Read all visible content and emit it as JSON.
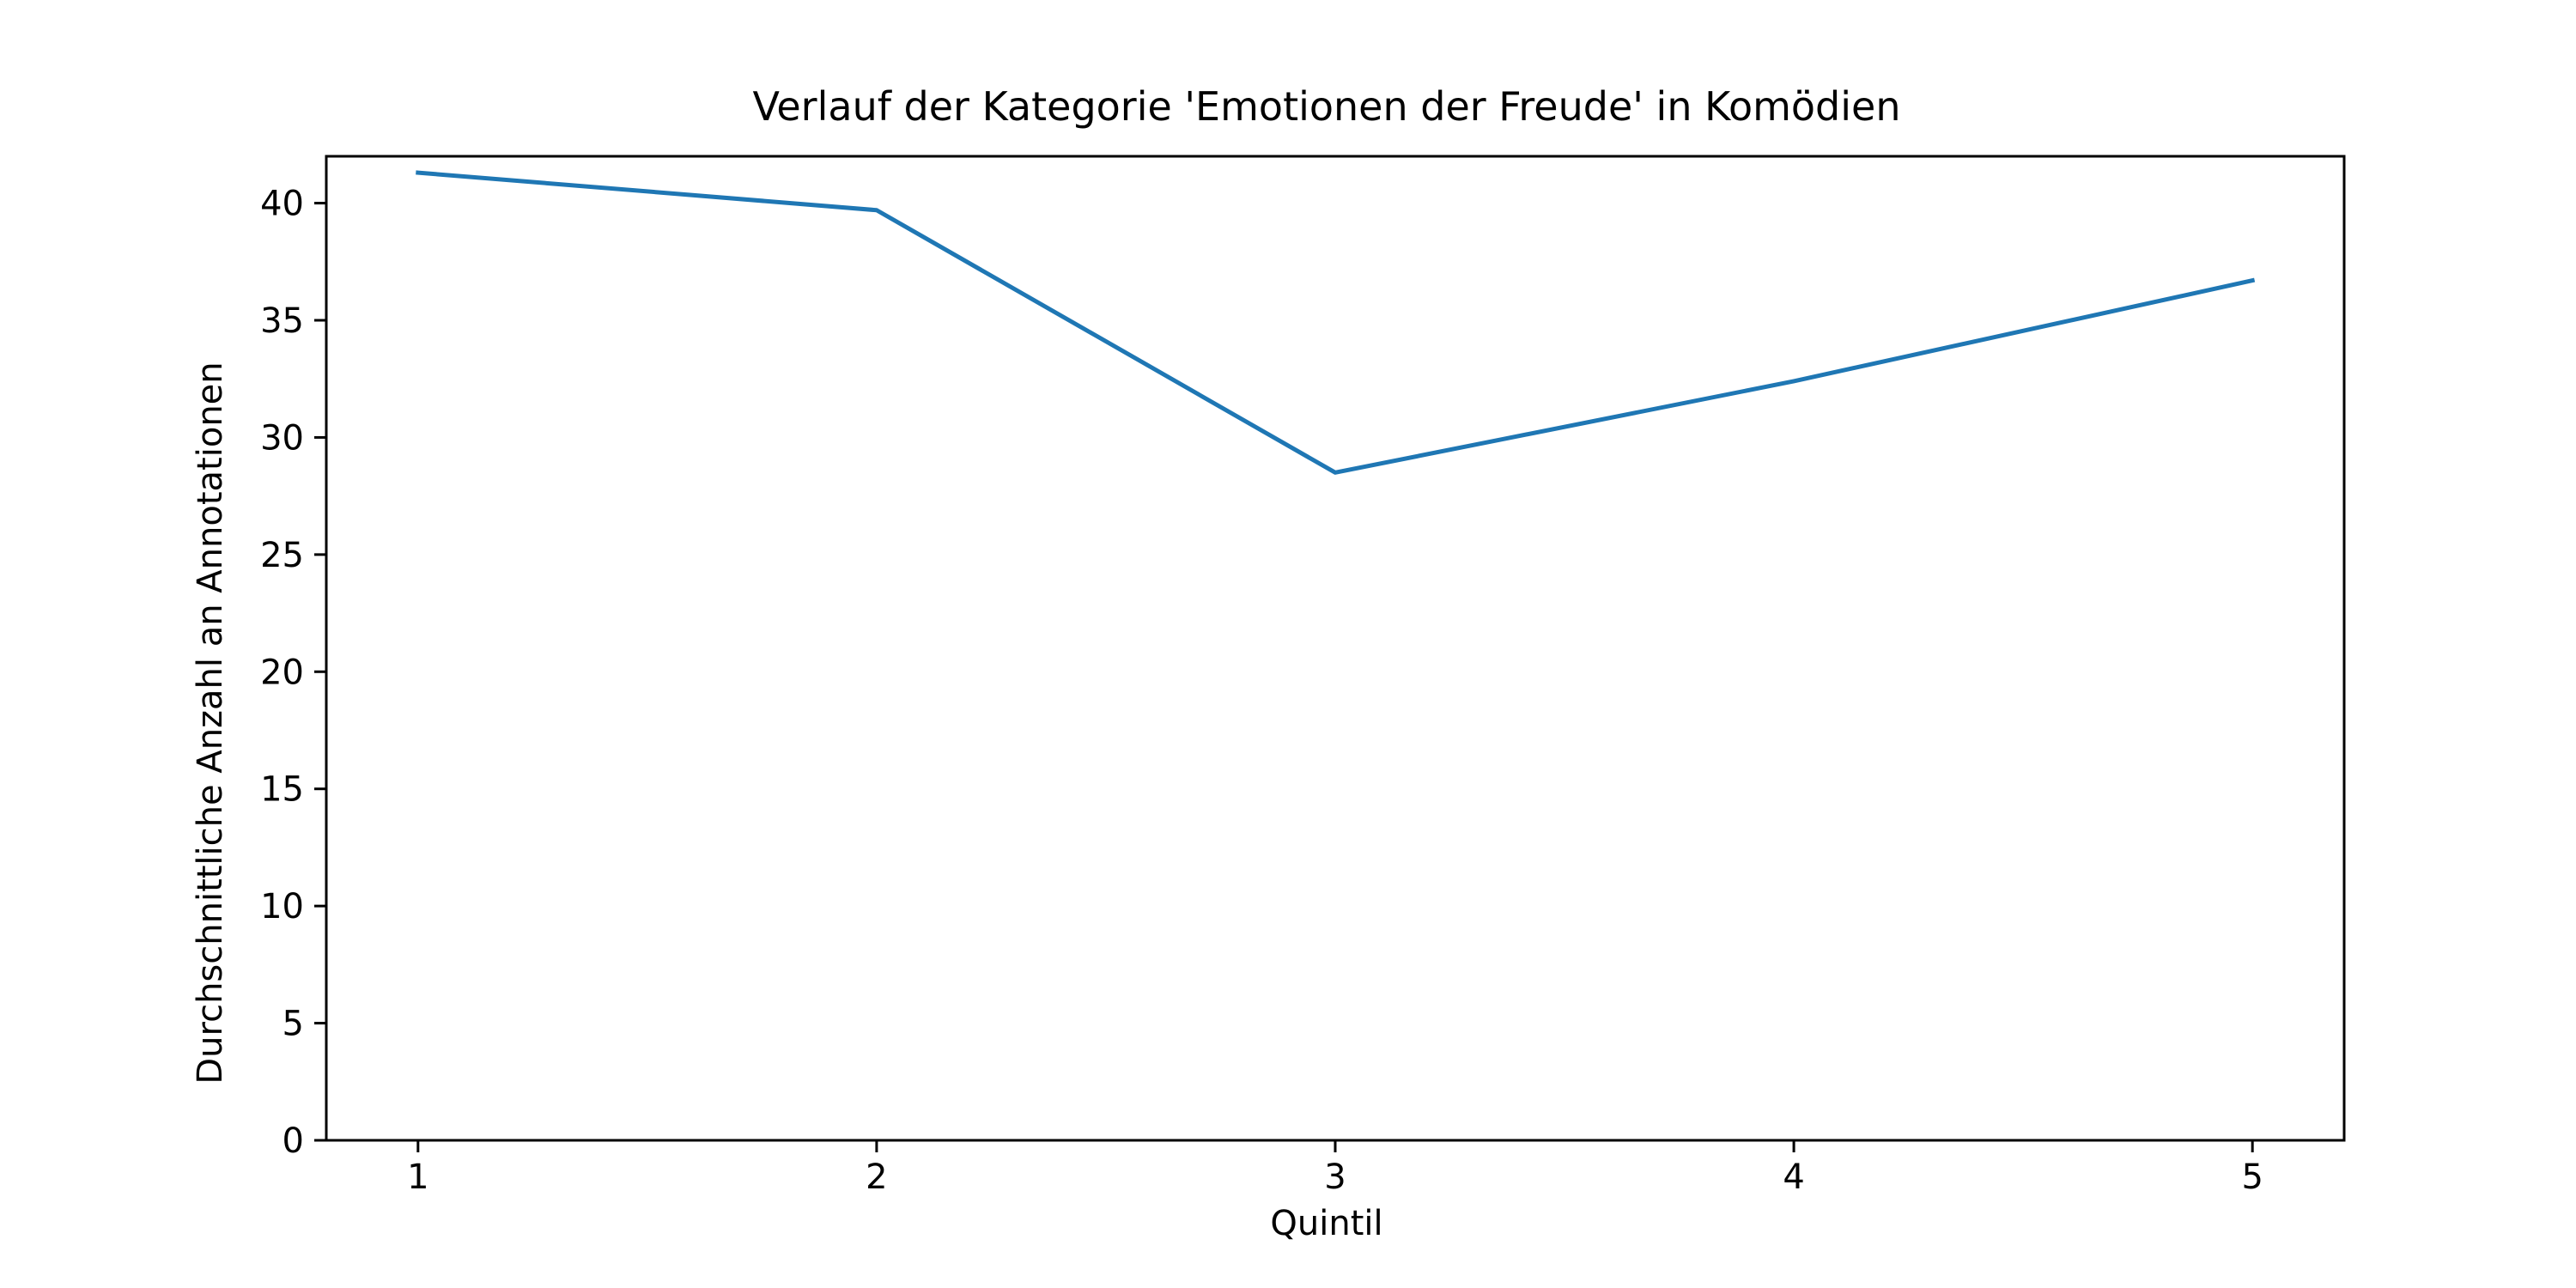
{
  "chart_data": {
    "type": "line",
    "title": "Verlauf der Kategorie 'Emotionen der Freude' in Komödien",
    "xlabel": "Quintil",
    "ylabel": "Durchschnittliche Anzahl an Annotationen",
    "x": [
      1,
      2,
      3,
      4,
      5
    ],
    "x_tick_labels": [
      "1",
      "2",
      "3",
      "4",
      "5"
    ],
    "xlim": [
      0.8,
      5.2
    ],
    "ylim": [
      0,
      42
    ],
    "y_ticks": [
      0,
      5,
      10,
      15,
      20,
      25,
      30,
      35,
      40
    ],
    "y_tick_labels": [
      "0",
      "5",
      "10",
      "15",
      "20",
      "25",
      "30",
      "35",
      "40"
    ],
    "series": [
      {
        "values": [
          41.3,
          39.7,
          28.5,
          32.4,
          36.7
        ],
        "color": "#1f77b4"
      }
    ],
    "grid": false,
    "legend": "none"
  }
}
